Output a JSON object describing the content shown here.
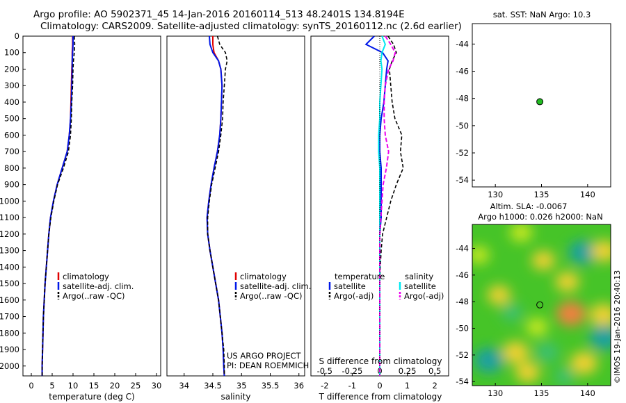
{
  "header": {
    "title_line1": "Argo profile: AO 5902371_45 14-Jan-2016 20160114_513 48.2401S 134.8194E",
    "title_line2": "Climatology: CARS2009. Satellite-adjusted climatology: synTS_20160112.nc (2.6d earlier)"
  },
  "colors": {
    "climatology": "#e00000",
    "satellite": "#0018e8",
    "argo": "#000000",
    "sal_satellite": "#00e8f0",
    "sal_argo": "#ee00ee",
    "marker": "#22bb22"
  },
  "annotations": {
    "project": "US ARGO PROJECT",
    "pi": "PI: DEAN ROEMMICH",
    "imos": "©IMOS 19-Jan-2016 20:40:13"
  },
  "chart_data": [
    {
      "type": "line",
      "id": "temperature-profile",
      "xlabel": "temperature (deg C)",
      "ylabel": "depth",
      "xlim": [
        -2,
        31
      ],
      "ylim": [
        2060,
        0
      ],
      "xticks": [
        "0",
        "5",
        "10",
        "15",
        "20",
        "25",
        "30"
      ],
      "yticks": [
        "0",
        "100",
        "200",
        "300",
        "400",
        "500",
        "600",
        "700",
        "800",
        "900",
        "1000",
        "1100",
        "1200",
        "1300",
        "1400",
        "1500",
        "1600",
        "1700",
        "1800",
        "1900",
        "2000"
      ],
      "depth": [
        0,
        50,
        100,
        150,
        200,
        300,
        400,
        500,
        600,
        700,
        800,
        900,
        1000,
        1100,
        1200,
        1300,
        1400,
        1500,
        1600,
        1700,
        1800,
        1900,
        2000,
        2060
      ],
      "legend": [
        "climatology",
        "satellite-adj. clim.",
        "Argo(..raw -QC)"
      ],
      "series": [
        {
          "name": "climatology",
          "values": [
            9.9,
            9.9,
            9.8,
            9.8,
            9.7,
            9.6,
            9.5,
            9.4,
            9.1,
            8.6,
            7.4,
            6.2,
            5.3,
            4.6,
            4.2,
            3.9,
            3.6,
            3.3,
            3.1,
            2.9,
            2.8,
            2.7,
            2.6,
            2.6
          ]
        },
        {
          "name": "satellite-adj. clim.",
          "values": [
            10.0,
            10.0,
            9.9,
            9.8,
            9.8,
            9.7,
            9.6,
            9.4,
            9.1,
            8.6,
            7.4,
            6.2,
            5.3,
            4.6,
            4.2,
            3.9,
            3.6,
            3.3,
            3.1,
            2.9,
            2.8,
            2.7,
            2.6,
            2.6
          ]
        },
        {
          "name": "Argo(..raw -QC)",
          "values": [
            10.3,
            10.4,
            10.3,
            10.1,
            10.0,
            9.9,
            9.7,
            9.6,
            9.4,
            8.9,
            7.7,
            6.3,
            5.4,
            4.7,
            4.2,
            3.9,
            3.6,
            3.3,
            3.1,
            2.9,
            2.8,
            2.7,
            2.6,
            2.6
          ]
        }
      ]
    },
    {
      "type": "line",
      "id": "salinity-profile",
      "xlabel": "salinity",
      "xlim": [
        33.7,
        36.1
      ],
      "ylim": [
        2060,
        0
      ],
      "xticks": [
        "34",
        "34.5",
        "35",
        "35.5",
        "36"
      ],
      "depth": [
        0,
        50,
        100,
        150,
        200,
        300,
        400,
        500,
        600,
        700,
        800,
        900,
        1000,
        1100,
        1200,
        1300,
        1400,
        1500,
        1600,
        1700,
        1800,
        1900,
        2000,
        2060
      ],
      "legend": [
        "climatology",
        "satellite-adj. clim.",
        "Argo(..raw -QC)"
      ],
      "series": [
        {
          "name": "climatology",
          "values": [
            34.5,
            34.5,
            34.52,
            34.6,
            34.64,
            34.66,
            34.65,
            34.64,
            34.62,
            34.58,
            34.52,
            34.47,
            34.43,
            34.4,
            34.41,
            34.45,
            34.5,
            34.55,
            34.6,
            34.63,
            34.66,
            34.68,
            34.69,
            34.7
          ]
        },
        {
          "name": "satellite-adj. clim.",
          "values": [
            34.44,
            34.45,
            34.5,
            34.6,
            34.64,
            34.66,
            34.65,
            34.64,
            34.62,
            34.58,
            34.52,
            34.47,
            34.43,
            34.4,
            34.41,
            34.45,
            34.5,
            34.55,
            34.6,
            34.63,
            34.66,
            34.68,
            34.69,
            34.7
          ]
        },
        {
          "name": "Argo(..raw -QC)",
          "values": [
            34.58,
            34.62,
            34.72,
            34.75,
            34.72,
            34.7,
            34.68,
            34.67,
            34.64,
            34.6,
            34.54,
            34.48,
            34.44,
            34.41,
            34.41,
            34.45,
            34.5,
            34.55,
            34.6,
            34.63,
            34.66,
            34.69,
            34.7,
            34.7
          ]
        }
      ]
    },
    {
      "type": "line",
      "id": "difference-profile",
      "xlabel": "T difference from climatology",
      "xlabel2": "S difference from climatology",
      "xlim": [
        -2.5,
        2.5
      ],
      "ylim": [
        2060,
        0
      ],
      "xticks": [
        "-2",
        "-1",
        "0",
        "1",
        "2"
      ],
      "xticks_top": [
        "-0.5",
        "-0.25",
        "0",
        "0.25",
        "0.5"
      ],
      "depth": [
        0,
        50,
        100,
        150,
        200,
        300,
        400,
        500,
        600,
        700,
        800,
        900,
        1000,
        1100,
        1200,
        1300,
        1400,
        1500,
        1600,
        1700,
        1800,
        1900,
        2000,
        2060
      ],
      "legend_headers": [
        "temperature",
        "salinity"
      ],
      "legend": [
        "satellite",
        "Argo(-adj)",
        "satellite",
        "Argo(-adj)"
      ],
      "series": [
        {
          "name": "temperature satellite",
          "values": [
            -0.2,
            -0.5,
            0.1,
            0.3,
            0.25,
            0.2,
            0.15,
            0.05,
            0.0,
            0.0,
            0.05,
            0.05,
            0.05,
            0.05,
            0.0,
            0.0,
            0.0,
            0.0,
            0.0,
            0.0,
            0.0,
            0.0,
            0.0,
            0.0
          ]
        },
        {
          "name": "temperature Argo(-adj)",
          "values": [
            0.3,
            0.5,
            0.6,
            0.45,
            0.35,
            0.4,
            0.45,
            0.55,
            0.8,
            0.75,
            0.85,
            0.6,
            0.4,
            0.25,
            0.1,
            0.05,
            0.02,
            0.0,
            0.0,
            0.0,
            0.0,
            0.0,
            0.0,
            0.0
          ]
        },
        {
          "name": "salinity satellite",
          "values": [
            0.02,
            0.05,
            0.02,
            0.01,
            0.02,
            0.01,
            0.0,
            0.0,
            -0.01,
            -0.01,
            0.0,
            0.0,
            0.0,
            0.0,
            0.0,
            0.0,
            0.0,
            0.0,
            0.0,
            0.0,
            0.0,
            0.0,
            0.0,
            0.0
          ]
        },
        {
          "name": "salinity Argo(-adj)",
          "values": [
            0.05,
            0.1,
            0.14,
            0.12,
            0.08,
            0.05,
            0.04,
            0.04,
            0.05,
            0.08,
            0.06,
            0.03,
            0.02,
            0.01,
            0.0,
            0.0,
            0.0,
            0.0,
            0.0,
            0.0,
            0.0,
            0.0,
            0.0,
            0.0
          ]
        }
      ]
    },
    {
      "type": "scatter",
      "id": "sst-map",
      "title": "sat. SST: NaN Argo: 10.3",
      "xlim": [
        127.5,
        142.5
      ],
      "ylim": [
        -54.5,
        -42.5
      ],
      "xticks": [
        "130",
        "135",
        "140"
      ],
      "yticks": [
        "-44",
        "-46",
        "-48",
        "-50",
        "-52",
        "-54"
      ],
      "points": [
        {
          "x": 134.82,
          "y": -48.24
        }
      ]
    },
    {
      "type": "heatmap",
      "id": "sla-map",
      "title_line1": "Altim. SLA: -0.0067",
      "title_line2": "Argo h1000: 0.026 h2000: NaN",
      "xlim": [
        127.5,
        142.5
      ],
      "ylim": [
        -54.3,
        -42.2
      ],
      "xticks": [
        "130",
        "135",
        "140"
      ],
      "yticks": [
        "-44",
        "-46",
        "-48",
        "-50",
        "-52",
        "-54"
      ],
      "points": [
        {
          "x": 134.82,
          "y": -48.24
        }
      ],
      "blobs": [
        {
          "x": 139.5,
          "y": -44.3,
          "v": -0.9
        },
        {
          "x": 141.8,
          "y": -44.2,
          "v": 0.7
        },
        {
          "x": 135.2,
          "y": -44.9,
          "v": 0.5
        },
        {
          "x": 137.8,
          "y": -46.5,
          "v": 0.55
        },
        {
          "x": 130.4,
          "y": -47.5,
          "v": 0.5
        },
        {
          "x": 138.2,
          "y": -48.9,
          "v": 0.95
        },
        {
          "x": 141.7,
          "y": -49.0,
          "v": 0.8
        },
        {
          "x": 131.8,
          "y": -48.8,
          "v": -0.35
        },
        {
          "x": 134.5,
          "y": -49.9,
          "v": 0.4
        },
        {
          "x": 135.6,
          "y": -51.8,
          "v": -0.55
        },
        {
          "x": 132.2,
          "y": -51.8,
          "v": 0.75
        },
        {
          "x": 129.3,
          "y": -52.4,
          "v": -1.0
        },
        {
          "x": 141.8,
          "y": -50.7,
          "v": -1.0
        },
        {
          "x": 139.6,
          "y": -52.6,
          "v": 0.8
        },
        {
          "x": 133.5,
          "y": -53.3,
          "v": 0.6
        },
        {
          "x": 137.5,
          "y": -53.6,
          "v": -0.3
        },
        {
          "x": 128.2,
          "y": -44.5,
          "v": 0.35
        },
        {
          "x": 132.8,
          "y": -42.8,
          "v": 0.45
        }
      ]
    }
  ]
}
